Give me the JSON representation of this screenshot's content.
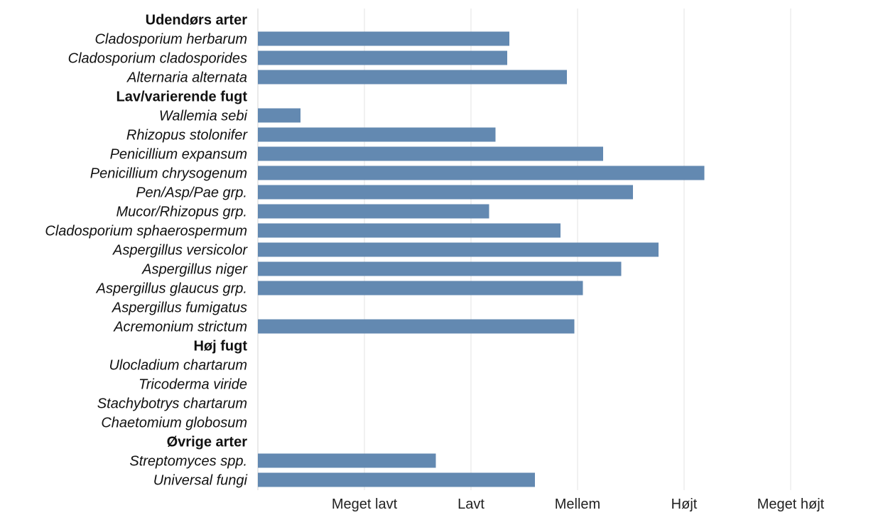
{
  "chart_data": {
    "type": "bar",
    "orientation": "horizontal",
    "bar_color": "#6389b1",
    "xlim": [
      0,
      5.9
    ],
    "grid": "vertical",
    "x_ticks": [
      {
        "value": 1,
        "label": "Meget lavt"
      },
      {
        "value": 2,
        "label": "Lavt"
      },
      {
        "value": 3,
        "label": "Mellem"
      },
      {
        "value": 4,
        "label": "Højt"
      },
      {
        "value": 5,
        "label": "Meget højt"
      }
    ],
    "rows": [
      {
        "label": "Udendørs arter",
        "kind": "group",
        "value": null
      },
      {
        "label": "Cladosporium herbarum",
        "kind": "species",
        "value": 2.36
      },
      {
        "label": "Cladosporium cladosporides",
        "kind": "species",
        "value": 2.34
      },
      {
        "label": "Alternaria alternata",
        "kind": "species",
        "value": 2.9
      },
      {
        "label": "Lav/varierende fugt",
        "kind": "group",
        "value": null
      },
      {
        "label": "Wallemia sebi",
        "kind": "species",
        "value": 0.4
      },
      {
        "label": "Rhizopus stolonifer",
        "kind": "species",
        "value": 2.23
      },
      {
        "label": "Penicillium expansum",
        "kind": "species",
        "value": 3.24
      },
      {
        "label": "Penicillium chrysogenum",
        "kind": "species",
        "value": 4.19
      },
      {
        "label": "Pen/Asp/Pae grp.",
        "kind": "species",
        "value": 3.52
      },
      {
        "label": "Mucor/Rhizopus grp.",
        "kind": "species",
        "value": 2.17
      },
      {
        "label": "Cladosporium sphaerospermum",
        "kind": "species",
        "value": 2.84
      },
      {
        "label": "Aspergillus versicolor",
        "kind": "species",
        "value": 3.76
      },
      {
        "label": "Aspergillus niger",
        "kind": "species",
        "value": 3.41
      },
      {
        "label": "Aspergillus glaucus grp.",
        "kind": "species",
        "value": 3.05
      },
      {
        "label": "Aspergillus fumigatus",
        "kind": "species",
        "value": null
      },
      {
        "label": "Acremonium strictum",
        "kind": "species",
        "value": 2.97
      },
      {
        "label": "Høj fugt",
        "kind": "group",
        "value": null
      },
      {
        "label": "Ulocladium chartarum",
        "kind": "species",
        "value": null
      },
      {
        "label": "Tricoderma viride",
        "kind": "species",
        "value": null
      },
      {
        "label": "Stachybotrys chartarum",
        "kind": "species",
        "value": null
      },
      {
        "label": "Chaetomium globosum",
        "kind": "species",
        "value": null
      },
      {
        "label": "Øvrige arter",
        "kind": "group",
        "value": null
      },
      {
        "label": "Streptomyces spp.",
        "kind": "species",
        "value": 1.67
      },
      {
        "label": "Universal fungi",
        "kind": "species",
        "value": 2.6
      }
    ]
  }
}
